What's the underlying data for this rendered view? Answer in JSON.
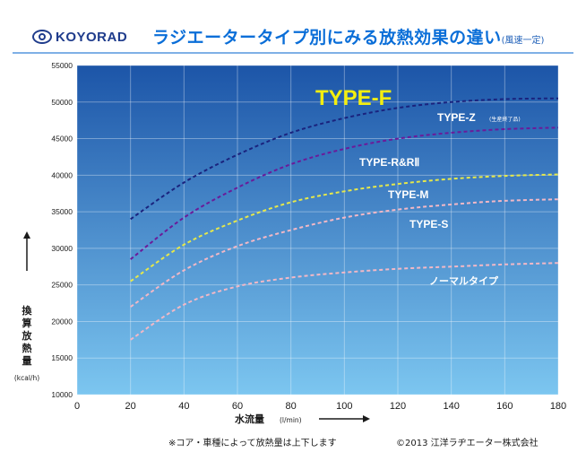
{
  "header": {
    "logo_text": "KOYORAD",
    "title": "ラジエータータイプ別にみる放熱効果の違い",
    "title_sub": "(風速一定)"
  },
  "footer": {
    "note": "※コア・車種によって放熱量は上下します",
    "copyright": "©2013 江洋ラヂエーター株式会社"
  },
  "colors": {
    "plot_top": "#1c55a8",
    "plot_bottom": "#7cc6f0",
    "title_blue": "#0a6ed8",
    "highlight_yellow": "#f4ee10"
  },
  "chart_data": {
    "type": "line",
    "title": "TYPE-F",
    "xlabel": "水流量",
    "xlabel_unit": "(l/min)",
    "ylabel_chars": [
      "換",
      "算",
      "放",
      "熱",
      "量"
    ],
    "ylabel_unit": "(kcal/h)",
    "xlim": [
      0,
      180
    ],
    "ylim": [
      10000,
      55000
    ],
    "x_ticks": [
      0,
      20,
      40,
      60,
      80,
      100,
      120,
      140,
      160,
      180
    ],
    "y_ticks": [
      10000,
      15000,
      20000,
      25000,
      30000,
      35000,
      40000,
      45000,
      50000,
      55000
    ],
    "grid": true,
    "x": [
      20,
      40,
      60,
      80,
      100,
      120,
      140,
      160,
      180
    ],
    "series": [
      {
        "name": "TYPE-F",
        "values": [
          34000,
          39000,
          42800,
          45800,
          47800,
          49200,
          50000,
          50400,
          50500
        ],
        "color": "#1a237e"
      },
      {
        "name": "TYPE-Z",
        "label_note": "(生産終了品)",
        "values": [
          28500,
          34200,
          38300,
          41500,
          43600,
          45000,
          45800,
          46300,
          46500
        ],
        "color": "#6a1b9a"
      },
      {
        "name": "TYPE-R&RⅡ",
        "values": [
          25500,
          30500,
          33800,
          36300,
          37800,
          38800,
          39500,
          39900,
          40100
        ],
        "color": "#e6e84a"
      },
      {
        "name": "TYPE-M",
        "values": [
          22000,
          27000,
          30300,
          32500,
          34200,
          35300,
          36000,
          36500,
          36700
        ],
        "color": "#f2b8c6"
      },
      {
        "name": "ノーマルタイプ",
        "values": [
          17500,
          22300,
          24800,
          26000,
          26700,
          27200,
          27500,
          27800,
          28000
        ],
        "color": "#f2b8c6"
      }
    ],
    "annotations": [
      "TYPE-Z",
      "(生産終了品)",
      "TYPE-R&RⅡ",
      "TYPE-M",
      "TYPE-S",
      "ノーマルタイプ"
    ]
  }
}
